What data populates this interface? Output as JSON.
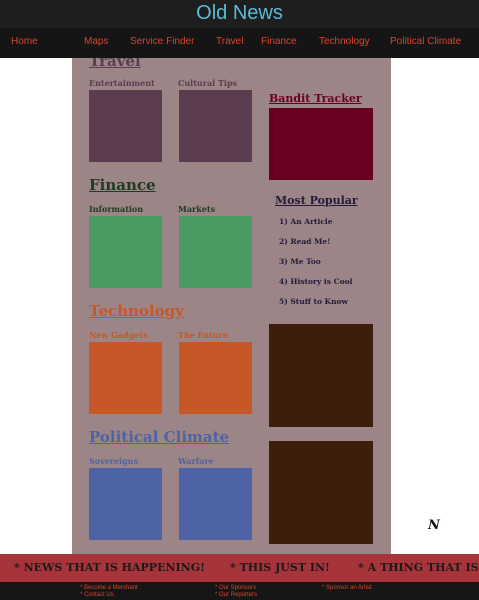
{
  "header": {
    "title": "Old News"
  },
  "nav": [
    "Home",
    "Maps",
    "Service Finder",
    "Travel",
    "Finance",
    "Technology",
    "Political Climate"
  ],
  "sections": {
    "travel": {
      "title": "Travel",
      "subs": [
        "Entertainment",
        "Cultural Tips"
      ]
    },
    "finance": {
      "title": "Finance",
      "subs": [
        "Information",
        "Markets"
      ]
    },
    "technology": {
      "title": "Technology",
      "subs": [
        "New Gadgets",
        "The Future"
      ]
    },
    "political": {
      "title": "Political Climate",
      "subs": [
        "Sovereigns",
        "Warfare"
      ]
    }
  },
  "sidebar": {
    "bandit_title": "Bandit Tracker",
    "popular_title": "Most Popular",
    "popular_items": [
      "1) An Article",
      "2) Read Me!",
      "3) Me Too",
      "4) History is Cool",
      "5) Stuff to Know"
    ]
  },
  "logo": "N",
  "ticker": [
    "* NEWS THAT IS HAPPENING!",
    "* THIS JUST IN!",
    "* A THING THAT IS HAPPENING!"
  ],
  "footer": {
    "col1": [
      "* Become a Merchant",
      "* Contact Us"
    ],
    "col2": [
      "* Our Sponsors",
      "* Our Reporters"
    ],
    "col3": [
      "* Sponsor an Artist"
    ]
  },
  "colors": {
    "travel": "#5c3d4f",
    "finance": "#4a9a63",
    "technology": "#c65726",
    "political": "#4d63a5",
    "bandit": "#6a0021",
    "ad": "#3d1d0c",
    "accent": "#d8452d",
    "brand": "#5fb9d6"
  }
}
